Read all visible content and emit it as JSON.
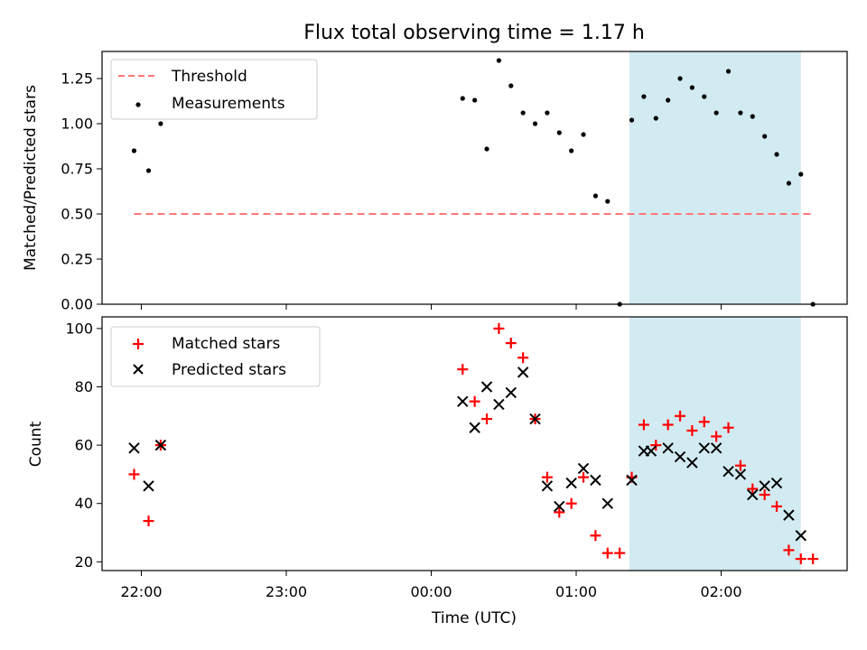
{
  "chart_data": {
    "title": "Flux total observing time = 1.17 h",
    "xlabel": "Time (UTC)",
    "x_ticks": [
      "22:00",
      "23:00",
      "00:00",
      "01:00",
      "02:00"
    ],
    "colors": {
      "threshold": "#ff7777",
      "measurements": "#000000",
      "matched": "#ff0000",
      "predicted": "#000000",
      "span": "#add8e6"
    },
    "shaded_span": {
      "start": "01:22",
      "end": "02:33"
    },
    "panels": [
      {
        "type": "scatter",
        "ylabel": "Matched/Predicted stars",
        "ylim": [
          0,
          1.4
        ],
        "y_ticks": [
          "0.00",
          "0.25",
          "0.50",
          "0.75",
          "1.00",
          "1.25"
        ],
        "legend_position": "top-left",
        "legend": [
          "Threshold",
          "Measurements"
        ],
        "threshold": {
          "name": "Threshold",
          "y": 0.5,
          "x_start": "21:57",
          "x_end": "02:38"
        },
        "series": [
          {
            "name": "Measurements",
            "marker": "dot",
            "x": [
              "21:57",
              "22:03",
              "22:08",
              "00:13",
              "00:18",
              "00:23",
              "00:28",
              "00:33",
              "00:38",
              "00:43",
              "00:48",
              "00:53",
              "00:58",
              "01:03",
              "01:08",
              "01:13",
              "01:18",
              "01:23",
              "01:28",
              "01:33",
              "01:38",
              "01:43",
              "01:48",
              "01:53",
              "01:58",
              "02:03",
              "02:08",
              "02:13",
              "02:18",
              "02:23",
              "02:28",
              "02:33",
              "02:38"
            ],
            "y": [
              0.85,
              0.74,
              1.0,
              1.14,
              1.13,
              0.86,
              1.35,
              1.21,
              1.06,
              1.0,
              1.06,
              0.95,
              0.85,
              0.94,
              0.6,
              0.57,
              0.0,
              1.02,
              1.15,
              1.03,
              1.13,
              1.25,
              1.2,
              1.15,
              1.06,
              1.29,
              1.06,
              1.04,
              0.93,
              0.83,
              0.67,
              0.72,
              0.0
            ]
          }
        ]
      },
      {
        "type": "scatter",
        "ylabel": "Count",
        "ylim": [
          17,
          104
        ],
        "y_ticks": [
          "20",
          "40",
          "60",
          "80",
          "100"
        ],
        "legend_position": "top-left",
        "legend": [
          "Matched stars",
          "Predicted stars"
        ],
        "series": [
          {
            "name": "Matched stars",
            "marker": "plus",
            "x": [
              "21:57",
              "22:03",
              "22:08",
              "00:13",
              "00:18",
              "00:23",
              "00:28",
              "00:33",
              "00:38",
              "00:43",
              "00:48",
              "00:53",
              "00:58",
              "01:03",
              "01:08",
              "01:13",
              "01:18",
              "01:23",
              "01:28",
              "01:33",
              "01:38",
              "01:43",
              "01:48",
              "01:53",
              "01:58",
              "02:03",
              "02:08",
              "02:13",
              "02:18",
              "02:23",
              "02:28",
              "02:33",
              "02:38"
            ],
            "y": [
              50,
              34,
              60,
              86,
              75,
              69,
              100,
              95,
              90,
              69,
              49,
              37,
              40,
              49,
              29,
              23,
              23,
              49,
              67,
              60,
              67,
              70,
              65,
              68,
              63,
              66,
              53,
              45,
              43,
              39,
              24,
              21,
              21
            ]
          },
          {
            "name": "Predicted stars",
            "marker": "x",
            "x": [
              "21:57",
              "22:03",
              "22:08",
              "00:13",
              "00:18",
              "00:23",
              "00:28",
              "00:33",
              "00:38",
              "00:43",
              "00:48",
              "00:53",
              "00:58",
              "01:03",
              "01:08",
              "01:13",
              "01:23",
              "01:28",
              "01:31",
              "01:38",
              "01:43",
              "01:48",
              "01:53",
              "01:58",
              "02:03",
              "02:08",
              "02:13",
              "02:18",
              "02:23",
              "02:28",
              "02:33"
            ],
            "y": [
              59,
              46,
              60,
              75,
              66,
              80,
              74,
              78,
              85,
              69,
              46,
              39,
              47,
              52,
              48,
              40,
              48,
              58,
              58,
              59,
              56,
              54,
              59,
              59,
              51,
              50,
              43,
              46,
              47,
              36,
              29
            ]
          }
        ]
      }
    ]
  }
}
